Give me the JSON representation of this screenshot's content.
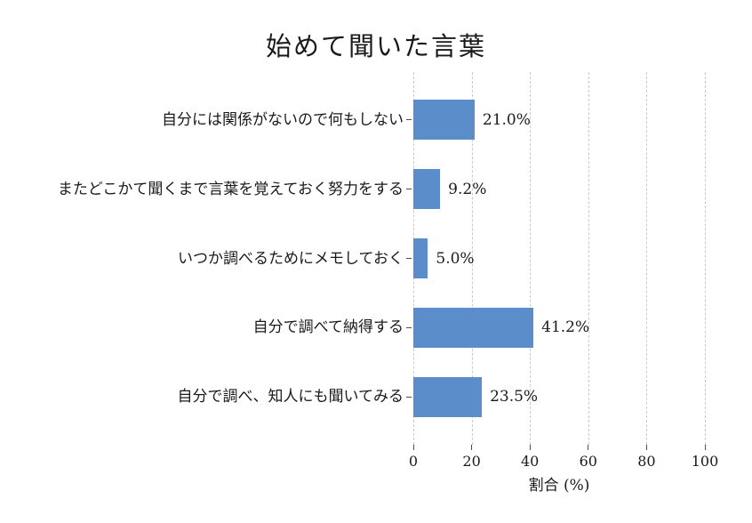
{
  "chart_data": {
    "type": "bar",
    "orientation": "horizontal",
    "title": "始めて聞いた言葉",
    "categories": [
      "自分には関係がないので何もしない",
      "またどこかて聞くまで言葉を覚えておく努力をする",
      "いつか調べるためにメモしておく",
      "自分で調べて納得する",
      "自分で調べ、知人にも聞いてみる"
    ],
    "values": [
      21.0,
      9.2,
      5.0,
      41.2,
      23.5
    ],
    "value_labels": [
      "21.0%",
      "9.2%",
      "5.0%",
      "41.2%",
      "23.5%"
    ],
    "xlabel": "割合 (%)",
    "xlim": [
      0,
      100
    ],
    "x_ticks": [
      0,
      20,
      40,
      60,
      80,
      100
    ],
    "grid": "vertical-dashed",
    "legend": "none",
    "colors": {
      "bar": "#5B8DCA",
      "grid": "#C9C9C9",
      "text": "#1A1A1A",
      "tick": "#4D4D4D"
    }
  }
}
